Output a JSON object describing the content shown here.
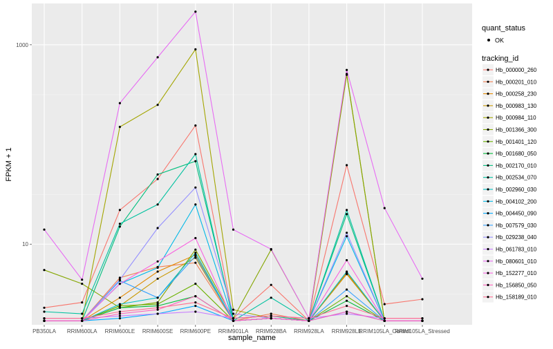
{
  "chart_data": {
    "type": "line",
    "xlabel": "sample_name",
    "ylabel": "FPKM + 1",
    "y_scale": "log10",
    "ylim": [
      1.55,
      2600
    ],
    "y_ticks": [
      {
        "value": 10,
        "label": "10"
      },
      {
        "value": 1000,
        "label": "1000"
      }
    ],
    "grid": true,
    "categories": [
      "PB350LA",
      "RRIM600LA",
      "RRIM600LE",
      "RRIM600SE",
      "RRIM600PE",
      "RRIM901LA",
      "RRIM928BA",
      "RRIM928LA",
      "RRIM928LE",
      "RRIM105LA_Control",
      "RRIM105LA_Stressed"
    ],
    "legend": {
      "position": "right",
      "point_legend_title": "quant_status",
      "point_legend_label": "OK",
      "series_legend_title": "tracking_id"
    },
    "series": [
      {
        "name": "Hb_000000_260",
        "color": "#F8766D",
        "values": [
          2.3,
          2.6,
          22,
          45,
          155,
          1.8,
          3.9,
          1.7,
          62,
          2.5,
          2.8
        ]
      },
      {
        "name": "Hb_000201_010",
        "color": "#F07F51",
        "values": [
          1.7,
          1.7,
          4.6,
          5.9,
          6.5,
          1.7,
          2.0,
          1.7,
          5.1,
          1.7,
          1.7
        ]
      },
      {
        "name": "Hb_000258_230",
        "color": "#E38900",
        "values": [
          1.7,
          1.7,
          2.9,
          5.3,
          7.8,
          1.7,
          1.8,
          1.7,
          5.2,
          1.7,
          1.7
        ]
      },
      {
        "name": "Hb_000983_130",
        "color": "#C99800",
        "values": [
          1.7,
          1.7,
          2.4,
          4.5,
          7.3,
          1.7,
          1.8,
          1.7,
          5.0,
          1.7,
          1.7
        ]
      },
      {
        "name": "Hb_000984_110",
        "color": "#A3A500",
        "values": [
          1.7,
          1.7,
          150,
          250,
          900,
          2.2,
          1.8,
          1.7,
          500,
          1.7,
          1.7
        ]
      },
      {
        "name": "Hb_001366_300",
        "color": "#84A600",
        "values": [
          5.5,
          4.0,
          2.3,
          2.6,
          8.8,
          1.8,
          8.8,
          1.8,
          510,
          1.7,
          1.7
        ]
      },
      {
        "name": "Hb_001401_120",
        "color": "#6BB100",
        "values": [
          1.7,
          1.7,
          2.4,
          2.5,
          4.0,
          1.7,
          1.8,
          1.7,
          3.0,
          1.7,
          1.7
        ]
      },
      {
        "name": "Hb_001680_050",
        "color": "#00BA38",
        "values": [
          1.7,
          1.7,
          2.3,
          2.4,
          3.0,
          1.7,
          1.8,
          1.7,
          2.7,
          1.7,
          1.7
        ]
      },
      {
        "name": "Hb_002170_010",
        "color": "#00BF7D",
        "values": [
          1.7,
          1.7,
          15,
          50,
          68,
          1.8,
          1.9,
          1.7,
          20,
          1.7,
          1.7
        ]
      },
      {
        "name": "Hb_002534_070",
        "color": "#00C19F",
        "values": [
          2.1,
          2.0,
          16,
          25,
          80,
          1.7,
          2.9,
          1.7,
          22,
          1.7,
          1.7
        ]
      },
      {
        "name": "Hb_002960_030",
        "color": "#00BFC4",
        "values": [
          1.7,
          1.7,
          2.5,
          2.9,
          8.2,
          1.7,
          1.8,
          1.7,
          5.3,
          1.7,
          1.7
        ]
      },
      {
        "name": "Hb_004102_200",
        "color": "#00B8E7",
        "values": [
          1.7,
          1.7,
          4.0,
          5.8,
          25,
          1.7,
          1.8,
          1.7,
          12,
          1.7,
          1.7
        ]
      },
      {
        "name": "Hb_004450_090",
        "color": "#00A9FF",
        "values": [
          1.7,
          1.7,
          1.8,
          2.0,
          2.4,
          1.7,
          1.8,
          1.7,
          2.1,
          1.7,
          1.7
        ]
      },
      {
        "name": "Hb_007579_030",
        "color": "#35A2FF",
        "values": [
          1.7,
          1.7,
          4.3,
          2.9,
          7.6,
          1.7,
          1.8,
          1.7,
          3.5,
          1.7,
          1.7
        ]
      },
      {
        "name": "Hb_029238_040",
        "color": "#9590FF",
        "values": [
          1.7,
          1.7,
          4.4,
          14.5,
          37,
          2.0,
          1.8,
          1.7,
          13,
          1.7,
          1.7
        ]
      },
      {
        "name": "Hb_061783_010",
        "color": "#C77CFF",
        "values": [
          1.8,
          1.8,
          1.9,
          2.0,
          2.1,
          1.8,
          1.9,
          1.8,
          2.0,
          1.8,
          1.8
        ]
      },
      {
        "name": "Hb_080601_010",
        "color": "#E76BF3",
        "values": [
          14,
          4.4,
          260,
          750,
          2150,
          14,
          8.9,
          1.8,
          560,
          23,
          4.5
        ]
      },
      {
        "name": "Hb_152277_010",
        "color": "#F863DF",
        "values": [
          1.7,
          1.7,
          4.0,
          6.7,
          11.5,
          1.7,
          1.8,
          1.7,
          6.9,
          1.7,
          1.7
        ]
      },
      {
        "name": "Hb_156850_050",
        "color": "#FF62BC",
        "values": [
          1.7,
          1.7,
          2.0,
          2.2,
          3.0,
          1.7,
          1.8,
          1.7,
          2.1,
          1.7,
          1.7
        ]
      },
      {
        "name": "Hb_158189_010",
        "color": "#FF6C91",
        "values": [
          1.8,
          1.8,
          2.1,
          2.3,
          2.6,
          1.8,
          1.9,
          1.8,
          2.4,
          1.8,
          1.8
        ]
      }
    ]
  }
}
